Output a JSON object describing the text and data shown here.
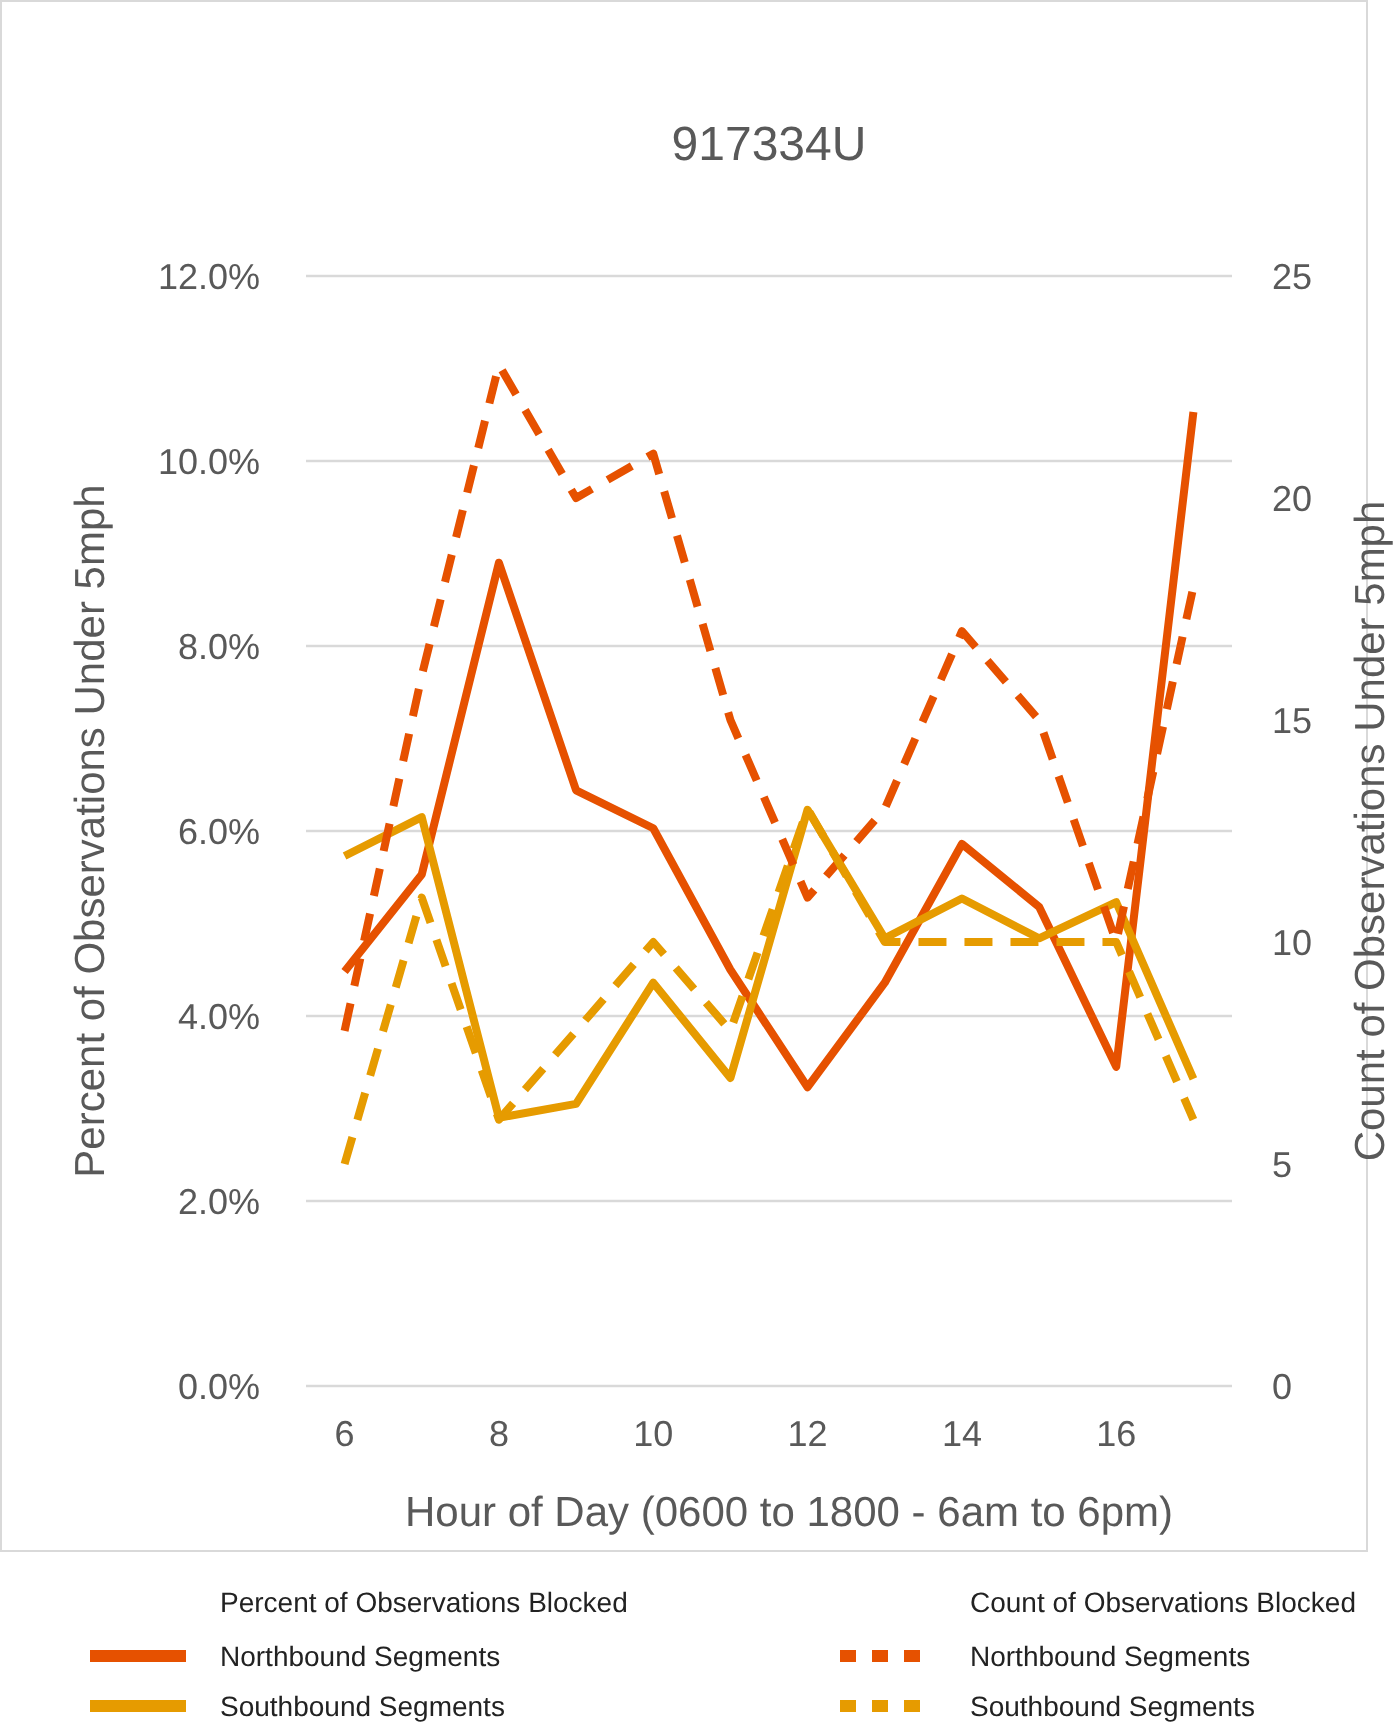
{
  "chart_data": {
    "type": "line",
    "title": "917334U",
    "xlabel": "Hour of Day (0600 to 1800 - 6am to 6pm)",
    "ylabel": "Percent of Observations Under 5mph",
    "y2label": "Count of Observations Under 5mph",
    "x": [
      6,
      7,
      8,
      9,
      10,
      11,
      12,
      13,
      14,
      15,
      16,
      17
    ],
    "xlim": [
      5.5,
      17.5
    ],
    "xticks": [
      6,
      8,
      10,
      12,
      14,
      16
    ],
    "ylim": [
      0,
      12
    ],
    "yticks": [
      {
        "value": 0,
        "label": "0.0%"
      },
      {
        "value": 2,
        "label": "2.0%"
      },
      {
        "value": 4,
        "label": "4.0%"
      },
      {
        "value": 6,
        "label": "6.0%"
      },
      {
        "value": 8,
        "label": "8.0%"
      },
      {
        "value": 10,
        "label": "10.0%"
      },
      {
        "value": 12,
        "label": "12.0%"
      }
    ],
    "y2lim": [
      0,
      25
    ],
    "y2ticks": [
      0,
      5,
      10,
      15,
      20,
      25
    ],
    "grid": "y",
    "legend": "bottom",
    "annotations": [
      "Percent of Observations Blocked",
      "Count of Observations Blocked"
    ],
    "series": [
      {
        "name": "Northbound Segments",
        "color": "#e65100",
        "line_style": "solid",
        "values": [
          4.48,
          5.53,
          8.9,
          6.44,
          6.03,
          4.5,
          3.23,
          4.36,
          5.86,
          5.18,
          3.45,
          10.53
        ]
      },
      {
        "name": "Southbound Segments",
        "color": "#e69b00",
        "line_style": "solid",
        "values": [
          5.73,
          6.15,
          2.9,
          3.05,
          4.36,
          3.33,
          6.23,
          4.84,
          5.27,
          4.84,
          5.23,
          3.32
        ]
      },
      {
        "name": "Northbound Segments",
        "color": "#e65100",
        "line_style": "dashed",
        "axis": "y2",
        "values": [
          8,
          16,
          23,
          20,
          21,
          15,
          11,
          13,
          17,
          15,
          10,
          18
        ]
      },
      {
        "name": "Southbound Segments",
        "color": "#e69b00",
        "line_style": "dashed",
        "axis": "y2",
        "values": [
          5,
          11,
          6,
          8,
          10,
          8,
          13,
          10,
          10,
          10,
          10,
          6
        ]
      }
    ]
  }
}
